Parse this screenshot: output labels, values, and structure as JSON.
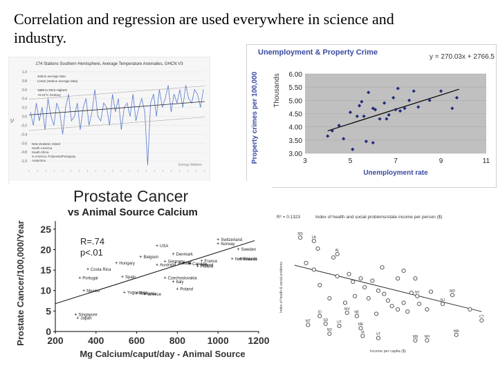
{
  "slide": {
    "title": "Correlation and regression are used everywhere in science and industry."
  },
  "chart_data": [
    {
      "type": "line",
      "title": "174 Stations Southern Hemisphere, Average Temperature Anomalies, GHCN V3",
      "ylabel": "°C",
      "ylim": [
        -1.2,
        1.0
      ],
      "yticks": [
        "1.0",
        "0.8",
        "0.6",
        "0.4",
        "0.2",
        "0.0",
        "-0.2",
        "-0.4",
        "-0.6",
        "-0.8",
        "-1.0"
      ],
      "legend": [
        "station average data",
        "Linear (Station average data)"
      ],
      "annotations": [
        "1885 to 2013 Highest",
        "+0.12°C /century"
      ],
      "notes": [
        "New Zealand, Island",
        "South America",
        "South Africa",
        "S.America, Polynesia/Paraguay",
        "Antarctica"
      ],
      "credit": "Energy Matters",
      "series": [
        {
          "values": [
            0.1,
            -0.2,
            0.3,
            -0.1,
            0.2,
            -0.3,
            0.4,
            0.0,
            -0.2,
            0.3,
            0.1,
            -0.4,
            0.2,
            0.5,
            -0.1,
            0.0,
            0.3,
            -0.3,
            0.2,
            0.4,
            -0.2,
            0.1,
            0.6,
            0.0,
            -0.1,
            0.3,
            0.2,
            -0.2,
            0.5,
            0.1,
            0.4,
            -0.3,
            0.2,
            0.3,
            0.0,
            0.5,
            -0.1,
            0.2,
            0.4,
            0.1,
            -1.1,
            0.3,
            0.5,
            0.0,
            0.6,
            0.2,
            0.4,
            0.7,
            0.1,
            0.5,
            0.3,
            0.6,
            0.2,
            0.7,
            0.4,
            0.3,
            0.6,
            0.5,
            0.2,
            0.6
          ]
        }
      ]
    },
    {
      "type": "scatter",
      "title": "Unemployment & Property Crime",
      "xlabel": "Unemployment rate",
      "ylabel": "Property crimes per 100,000",
      "ylabel_units": "Thousands",
      "xlim": [
        3,
        11
      ],
      "ylim": [
        3.0,
        6.0
      ],
      "xticks": [
        "3",
        "5",
        "7",
        "9",
        "11"
      ],
      "yticks": [
        "6.00",
        "5.50",
        "5.00",
        "4.50",
        "4.00",
        "3.50",
        "3.00"
      ],
      "equation": "y = 270.03x + 2766.5",
      "trendline": {
        "x": [
          4.0,
          9.8
        ],
        "y": [
          3.85,
          5.42
        ]
      },
      "points": [
        {
          "x": 4.0,
          "y": 3.65
        },
        {
          "x": 4.2,
          "y": 3.85
        },
        {
          "x": 4.5,
          "y": 4.05
        },
        {
          "x": 4.7,
          "y": 3.55
        },
        {
          "x": 5.0,
          "y": 4.55
        },
        {
          "x": 5.1,
          "y": 3.15
        },
        {
          "x": 5.3,
          "y": 4.4
        },
        {
          "x": 5.4,
          "y": 4.8
        },
        {
          "x": 5.5,
          "y": 4.95
        },
        {
          "x": 5.6,
          "y": 4.4
        },
        {
          "x": 5.7,
          "y": 3.45
        },
        {
          "x": 5.8,
          "y": 5.3
        },
        {
          "x": 6.0,
          "y": 3.4
        },
        {
          "x": 6.0,
          "y": 4.7
        },
        {
          "x": 6.1,
          "y": 4.65
        },
        {
          "x": 6.3,
          "y": 4.3
        },
        {
          "x": 6.5,
          "y": 4.9
        },
        {
          "x": 6.6,
          "y": 4.3
        },
        {
          "x": 6.7,
          "y": 4.45
        },
        {
          "x": 6.9,
          "y": 5.1
        },
        {
          "x": 7.0,
          "y": 4.65
        },
        {
          "x": 7.1,
          "y": 5.45
        },
        {
          "x": 7.2,
          "y": 4.6
        },
        {
          "x": 7.4,
          "y": 4.7
        },
        {
          "x": 7.6,
          "y": 5.0
        },
        {
          "x": 7.8,
          "y": 5.35
        },
        {
          "x": 8.0,
          "y": 4.75
        },
        {
          "x": 8.5,
          "y": 5.0
        },
        {
          "x": 9.0,
          "y": 5.35
        },
        {
          "x": 9.5,
          "y": 4.7
        },
        {
          "x": 9.7,
          "y": 5.1
        }
      ]
    },
    {
      "type": "scatter",
      "title": "Prostate Cancer",
      "subtitle": "vs Animal Source Calcium",
      "xlabel": "Mg Calcium/caput/day - Animal Source",
      "ylabel": "Prostate Cancer/100,000/Year",
      "xlim": [
        200,
        1200
      ],
      "ylim": [
        0,
        27
      ],
      "xticks": [
        "200",
        "400",
        "600",
        "800",
        "1000",
        "1200"
      ],
      "yticks": [
        "0",
        "5",
        "10",
        "15",
        "20",
        "25"
      ],
      "annotation": [
        "R=.74",
        "p<.01"
      ],
      "trendline": {
        "x": [
          200,
          1180
        ],
        "y": [
          6.8,
          22.2
        ]
      },
      "points": [
        {
          "label": "Switzerland",
          "x": 1000,
          "y": 22.5
        },
        {
          "label": "Norway",
          "x": 1000,
          "y": 21.5
        },
        {
          "label": "USA",
          "x": 700,
          "y": 21
        },
        {
          "label": "Sweden",
          "x": 1100,
          "y": 20.2
        },
        {
          "label": "Denmark",
          "x": 780,
          "y": 19.0
        },
        {
          "label": "Belgium",
          "x": 620,
          "y": 18.3
        },
        {
          "label": "Netherlands",
          "x": 1070,
          "y": 17.8
        },
        {
          "label": "Finland",
          "x": 1110,
          "y": 17.8
        },
        {
          "label": "France",
          "x": 920,
          "y": 17.3
        },
        {
          "label": "Hungary",
          "x": 500,
          "y": 16.8
        },
        {
          "label": "Germany",
          "x": 740,
          "y": 17.2
        },
        {
          "label": "Austria",
          "x": 790,
          "y": 16.8
        },
        {
          "label": "UK",
          "x": 830,
          "y": 16.9
        },
        {
          "label": "Canada",
          "x": 860,
          "y": 16.6
        },
        {
          "label": "Ireland",
          "x": 900,
          "y": 16.4
        },
        {
          "label": "Australia",
          "x": 700,
          "y": 16.4
        },
        {
          "label": "Poland",
          "x": 900,
          "y": 16.0
        },
        {
          "label": "Costa Rica",
          "x": 360,
          "y": 15.3
        },
        {
          "label": "Portugal",
          "x": 320,
          "y": 13.2
        },
        {
          "label": "Spain",
          "x": 530,
          "y": 13.4
        },
        {
          "label": "Czechoslovakia",
          "x": 740,
          "y": 13.2
        },
        {
          "label": "Italy",
          "x": 780,
          "y": 12.2
        },
        {
          "label": "Poland",
          "x": 800,
          "y": 10.5
        },
        {
          "label": "Mexico",
          "x": 340,
          "y": 10.0
        },
        {
          "label": "Yugoslavia",
          "x": 540,
          "y": 9.6
        },
        {
          "label": "Romania",
          "x": 600,
          "y": 9.4
        },
        {
          "label": "Greece",
          "x": 640,
          "y": 9.2
        },
        {
          "label": "Singapore",
          "x": 300,
          "y": 4.2
        },
        {
          "label": "Japan",
          "x": 310,
          "y": 3.4
        }
      ]
    },
    {
      "type": "scatter",
      "title": "Index of health and social problems/state income per person ($)",
      "r2": "R² = 0.1323",
      "xlabel": "Income per capita ($)",
      "ylabel": "Index of health & social problems",
      "trendline": {
        "x": [
          0.02,
          0.98
        ],
        "y": [
          0.7,
          0.28
        ]
      },
      "labeled_points": [
        {
          "label": "MS",
          "x": 0.05,
          "y": 0.95
        },
        {
          "label": "LA",
          "x": 0.12,
          "y": 0.92
        },
        {
          "label": "AL",
          "x": 0.24,
          "y": 0.8
        },
        {
          "label": "MD",
          "x": 0.83,
          "y": 0.43
        },
        {
          "label": "NY",
          "x": 0.65,
          "y": 0.42
        },
        {
          "label": "NJ",
          "x": 0.78,
          "y": 0.35
        },
        {
          "label": "WV",
          "x": 0.29,
          "y": 0.27
        },
        {
          "label": "ID",
          "x": 0.15,
          "y": 0.24
        },
        {
          "label": "NE",
          "x": 0.34,
          "y": 0.24
        },
        {
          "label": "MT",
          "x": 0.09,
          "y": 0.16
        },
        {
          "label": "SD",
          "x": 0.18,
          "y": 0.17
        },
        {
          "label": "UT",
          "x": 0.25,
          "y": 0.15
        },
        {
          "label": "ME",
          "x": 0.36,
          "y": 0.13
        },
        {
          "label": "ND",
          "x": 0.2,
          "y": 0.08
        },
        {
          "label": "IA",
          "x": 0.37,
          "y": 0.06
        },
        {
          "label": "VT",
          "x": 0.45,
          "y": 0.04
        },
        {
          "label": "MN",
          "x": 0.64,
          "y": 0.02
        },
        {
          "label": "NH",
          "x": 0.7,
          "y": 0.02
        },
        {
          "label": "MA",
          "x": 0.85,
          "y": 0.07
        },
        {
          "label": "CT",
          "x": 0.98,
          "y": 0.2
        }
      ],
      "points": [
        {
          "x": 0.08,
          "y": 0.72
        },
        {
          "x": 0.12,
          "y": 0.66
        },
        {
          "x": 0.14,
          "y": 0.85
        },
        {
          "x": 0.22,
          "y": 0.77
        },
        {
          "x": 0.24,
          "y": 0.6
        },
        {
          "x": 0.3,
          "y": 0.62
        },
        {
          "x": 0.32,
          "y": 0.55
        },
        {
          "x": 0.36,
          "y": 0.58
        },
        {
          "x": 0.38,
          "y": 0.5
        },
        {
          "x": 0.42,
          "y": 0.56
        },
        {
          "x": 0.45,
          "y": 0.47
        },
        {
          "x": 0.48,
          "y": 0.44
        },
        {
          "x": 0.5,
          "y": 0.38
        },
        {
          "x": 0.52,
          "y": 0.33
        },
        {
          "x": 0.55,
          "y": 0.3
        },
        {
          "x": 0.58,
          "y": 0.36
        },
        {
          "x": 0.6,
          "y": 0.28
        },
        {
          "x": 0.62,
          "y": 0.45
        },
        {
          "x": 0.66,
          "y": 0.35
        },
        {
          "x": 0.7,
          "y": 0.3
        },
        {
          "x": 0.47,
          "y": 0.68
        },
        {
          "x": 0.55,
          "y": 0.58
        },
        {
          "x": 0.72,
          "y": 0.46
        },
        {
          "x": 0.4,
          "y": 0.4
        },
        {
          "x": 0.33,
          "y": 0.42
        },
        {
          "x": 0.28,
          "y": 0.36
        },
        {
          "x": 0.44,
          "y": 0.26
        },
        {
          "x": 0.92,
          "y": 0.3
        },
        {
          "x": 0.15,
          "y": 0.52
        },
        {
          "x": 0.2,
          "y": 0.4
        },
        {
          "x": 0.58,
          "y": 0.65
        },
        {
          "x": 0.64,
          "y": 0.58
        }
      ]
    }
  ],
  "colors": {
    "unemp_plot_bg": "#c0c0c0",
    "unemp_marker": "#1f2a7a",
    "unemp_title": "#3a4aa0",
    "temp_line": "#5577cc",
    "social_marker": "#444444"
  }
}
